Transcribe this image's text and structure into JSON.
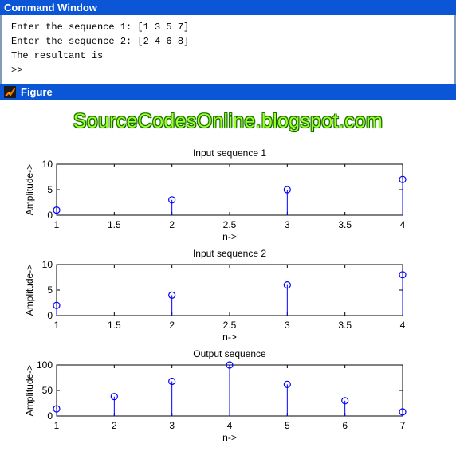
{
  "command_window": {
    "title": "Command Window",
    "lines": [
      "Enter the sequence 1: [1 3 5 7]",
      "Enter the sequence 2: [2 4 6 8]",
      "The resultant is",
      ">>"
    ]
  },
  "figure_window": {
    "title": "Figure",
    "icon": "matlab-figure-icon",
    "watermark": "SourceCodesOnline.blogspot.com"
  },
  "colors": {
    "titlebar": "#0a56d6",
    "stem": "#0000ff",
    "watermark": "#9aff2a"
  },
  "chart_data": [
    {
      "type": "stem",
      "title": "Input sequence 1",
      "xlabel": "n->",
      "ylabel": "Amplitude->",
      "x": [
        1,
        2,
        3,
        4
      ],
      "y": [
        1,
        3,
        5,
        7
      ],
      "xlim": [
        1,
        4
      ],
      "ylim": [
        0,
        10
      ],
      "xticks": [
        "1",
        "1.5",
        "2",
        "2.5",
        "3",
        "3.5",
        "4"
      ],
      "yticks": [
        "0",
        "5",
        "10"
      ],
      "grid": false
    },
    {
      "type": "stem",
      "title": "Input sequence 2",
      "xlabel": "n->",
      "ylabel": "Amplitude->",
      "x": [
        1,
        2,
        3,
        4
      ],
      "y": [
        2,
        4,
        6,
        8
      ],
      "xlim": [
        1,
        4
      ],
      "ylim": [
        0,
        10
      ],
      "xticks": [
        "1",
        "1.5",
        "2",
        "2.5",
        "3",
        "3.5",
        "4"
      ],
      "yticks": [
        "0",
        "5",
        "10"
      ],
      "grid": false
    },
    {
      "type": "stem",
      "title": "Output sequence",
      "xlabel": "n->",
      "ylabel": "Amplitude->",
      "x": [
        1,
        2,
        3,
        4,
        5,
        6,
        7
      ],
      "y": [
        14,
        38,
        68,
        100,
        62,
        30,
        8
      ],
      "xlim": [
        1,
        7
      ],
      "ylim": [
        0,
        100
      ],
      "xticks": [
        "1",
        "2",
        "3",
        "4",
        "5",
        "6",
        "7"
      ],
      "yticks": [
        "0",
        "50",
        "100"
      ],
      "grid": false
    }
  ]
}
